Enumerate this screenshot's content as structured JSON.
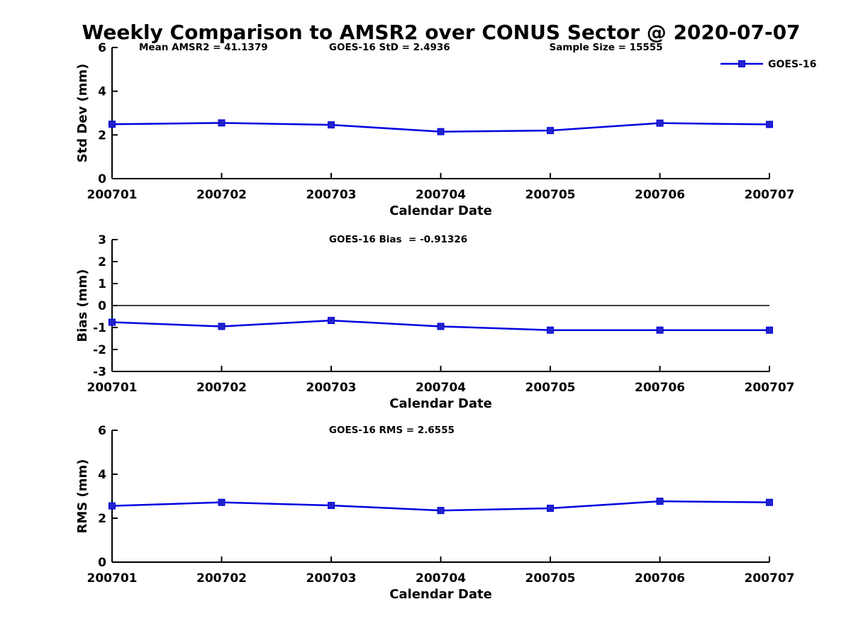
{
  "page_title": "Weekly Comparison to AMSR2 over CONUS Sector @ 2020-07-07",
  "colors": {
    "line": "#0000e0",
    "marker_fill": "#2222cc",
    "axis": "#000000",
    "text": "#000000",
    "background": "#ffffff"
  },
  "chart_data": [
    {
      "type": "line",
      "ylabel": "Std Dev (mm)",
      "xlabel": "Calendar Date",
      "ylim": [
        0,
        6
      ],
      "yticks": [
        "0",
        "2",
        "4",
        "6"
      ],
      "grid": false,
      "legend_position": "upper-right-outside-plot",
      "categories": [
        "200701",
        "200702",
        "200703",
        "200704",
        "200705",
        "200706",
        "200707"
      ],
      "series": [
        {
          "name": "GOES-16",
          "values": [
            2.49,
            2.55,
            2.46,
            2.15,
            2.2,
            2.54,
            2.48
          ]
        }
      ],
      "annotations": [
        {
          "text": "Mean AMSR2 = 41.1379",
          "fx": 0.041
        },
        {
          "text": "GOES-16 StD = 2.4936",
          "fx": 0.33
        },
        {
          "text": "Sample Size = 15555",
          "fx": 0.665
        }
      ],
      "zero_line": false,
      "legend": {
        "label": "GOES-16"
      }
    },
    {
      "type": "line",
      "ylabel": "Bias (mm)",
      "xlabel": "Calendar Date",
      "ylim": [
        -3,
        3
      ],
      "yticks": [
        "-3",
        "-2",
        "-1",
        "0",
        "1",
        "2",
        "3"
      ],
      "grid": false,
      "categories": [
        "200701",
        "200702",
        "200703",
        "200704",
        "200705",
        "200706",
        "200707"
      ],
      "series": [
        {
          "name": "GOES-16",
          "values": [
            -0.76,
            -0.95,
            -0.68,
            -0.95,
            -1.12,
            -1.12,
            -1.12
          ]
        }
      ],
      "annotations": [
        {
          "text": "GOES-16 Bias  = -0.91326",
          "fx": 0.33
        }
      ],
      "zero_line": true
    },
    {
      "type": "line",
      "ylabel": "RMS (mm)",
      "xlabel": "Calendar Date",
      "ylim": [
        0,
        6
      ],
      "yticks": [
        "0",
        "2",
        "4",
        "6"
      ],
      "grid": false,
      "categories": [
        "200701",
        "200702",
        "200703",
        "200704",
        "200705",
        "200706",
        "200707"
      ],
      "series": [
        {
          "name": "GOES-16",
          "values": [
            2.56,
            2.72,
            2.58,
            2.35,
            2.45,
            2.77,
            2.72
          ]
        }
      ],
      "annotations": [
        {
          "text": "GOES-16 RMS = 2.6555",
          "fx": 0.33
        }
      ],
      "zero_line": false
    }
  ]
}
